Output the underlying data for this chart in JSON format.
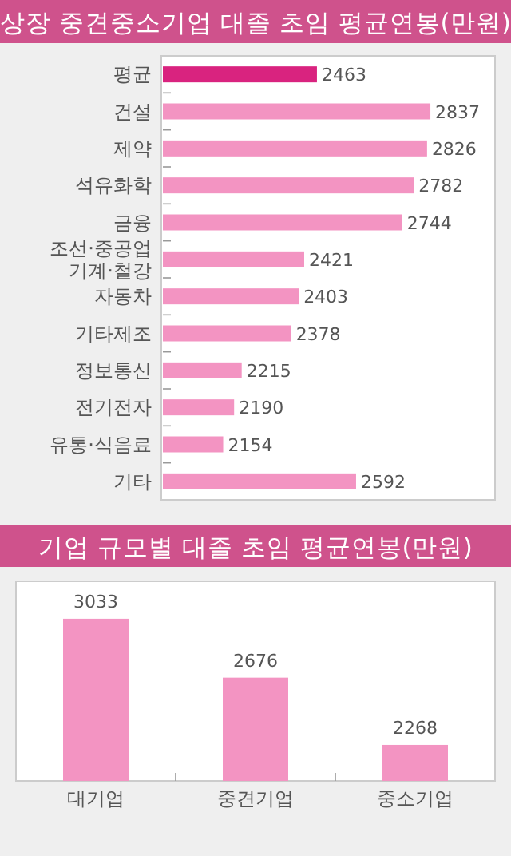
{
  "chart_data": [
    {
      "type": "bar",
      "orientation": "horizontal",
      "title": "상장 중견중소기업 대졸 초임 평균연봉(만원)",
      "categories": [
        "평균",
        "건설",
        "제약",
        "석유화학",
        "금융",
        "조선·중공업 기계·철강",
        "자동차",
        "기타제조",
        "정보통신",
        "전기전자",
        "유통·식음료",
        "기타"
      ],
      "values": [
        2463,
        2837,
        2826,
        2782,
        2744,
        2421,
        2403,
        2378,
        2215,
        2190,
        2154,
        2592
      ],
      "colors": [
        "#d9237f",
        "#f394c2",
        "#f394c2",
        "#f394c2",
        "#f394c2",
        "#f394c2",
        "#f394c2",
        "#f394c2",
        "#f394c2",
        "#f394c2",
        "#f394c2",
        "#f394c2"
      ],
      "xlim": [
        1950,
        3050
      ],
      "data_labels": true
    },
    {
      "type": "bar",
      "title": "기업 규모별 대졸 초임 평균연봉(만원)",
      "categories": [
        "대기업",
        "중견기업",
        "중소기업"
      ],
      "values": [
        3033,
        2676,
        2268
      ],
      "colors": [
        "#f394c2",
        "#f394c2",
        "#f394c2"
      ],
      "ylim": [
        2050,
        3260
      ],
      "data_labels": true
    }
  ]
}
